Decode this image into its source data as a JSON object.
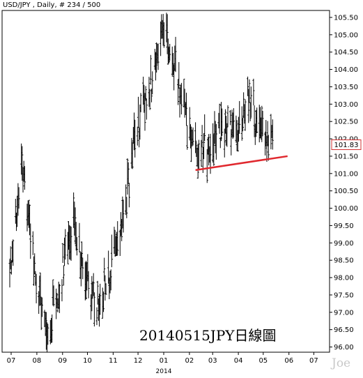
{
  "header": {
    "symbol": "USD/JPY",
    "interval": "Daily",
    "count": "# 234 / 500"
  },
  "annotation_text": "20140515JPY日線圖",
  "watermark": "Joe",
  "colors": {
    "bars": "#000000",
    "trendline": "#e0282e",
    "price_box": "#d03030",
    "background": "#ffffff"
  },
  "chart_data": {
    "type": "ohlc",
    "y_axis": {
      "range": [
        95.85,
        105.7
      ],
      "ticks": [
        "96.00",
        "96.50",
        "97.00",
        "97.50",
        "98.00",
        "98.50",
        "99.00",
        "99.50",
        "100.00",
        "100.50",
        "101.00",
        "101.50",
        "102.00",
        "102.50",
        "103.00",
        "103.50",
        "104.00",
        "104.50",
        "105.00",
        "105.50"
      ]
    },
    "x_axis": {
      "month_labels": [
        "07",
        "08",
        "09",
        "10",
        "11",
        "12",
        "01",
        "02",
        "03",
        "04",
        "05",
        "06",
        "07"
      ],
      "year_label": "2014"
    },
    "last_price": "101.83",
    "trendline": {
      "from": [
        "2014-02-10",
        101.1
      ],
      "to": [
        "2014-06-01",
        101.5
      ]
    },
    "path_segments": [
      {
        "start": "2013-07-01",
        "end": "2013-07-15",
        "close": [
          97.9,
          101.3
        ]
      },
      {
        "start": "2013-07-15",
        "end": "2013-08-01",
        "close": [
          101.3,
          98.0
        ]
      },
      {
        "start": "2013-08-01",
        "end": "2013-08-15",
        "close": [
          98.0,
          96.2
        ]
      },
      {
        "start": "2013-08-15",
        "end": "2013-09-01",
        "close": [
          96.2,
          98.0
        ]
      },
      {
        "start": "2013-09-01",
        "end": "2013-09-15",
        "close": [
          98.0,
          99.7
        ]
      },
      {
        "start": "2013-09-15",
        "end": "2013-10-01",
        "close": [
          99.7,
          98.0
        ]
      },
      {
        "start": "2013-10-01",
        "end": "2013-10-15",
        "close": [
          98.0,
          97.2
        ]
      },
      {
        "start": "2013-10-15",
        "end": "2013-11-01",
        "close": [
          97.2,
          98.3
        ]
      },
      {
        "start": "2013-11-01",
        "end": "2013-11-15",
        "close": [
          98.3,
          99.8
        ]
      },
      {
        "start": "2013-11-15",
        "end": "2013-12-01",
        "close": [
          99.8,
          102.3
        ]
      },
      {
        "start": "2013-12-01",
        "end": "2013-12-15",
        "close": [
          102.3,
          103.2
        ]
      },
      {
        "start": "2013-12-15",
        "end": "2014-01-01",
        "close": [
          103.2,
          105.1
        ]
      },
      {
        "start": "2014-01-01",
        "end": "2014-01-15",
        "close": [
          105.1,
          104.3
        ]
      },
      {
        "start": "2014-01-15",
        "end": "2014-02-01",
        "close": [
          104.3,
          102.3
        ]
      },
      {
        "start": "2014-02-01",
        "end": "2014-02-15",
        "close": [
          102.3,
          101.6
        ]
      },
      {
        "start": "2014-02-15",
        "end": "2014-03-01",
        "close": [
          101.6,
          101.8
        ]
      },
      {
        "start": "2014-03-01",
        "end": "2014-03-15",
        "close": [
          101.8,
          102.3
        ]
      },
      {
        "start": "2014-03-15",
        "end": "2014-04-01",
        "close": [
          102.3,
          102.2
        ]
      },
      {
        "start": "2014-04-01",
        "end": "2014-04-15",
        "close": [
          102.2,
          103.3
        ]
      },
      {
        "start": "2014-04-15",
        "end": "2014-05-01",
        "close": [
          103.3,
          102.0
        ]
      },
      {
        "start": "2014-05-01",
        "end": "2014-05-15",
        "close": [
          102.0,
          101.8
        ]
      }
    ]
  }
}
